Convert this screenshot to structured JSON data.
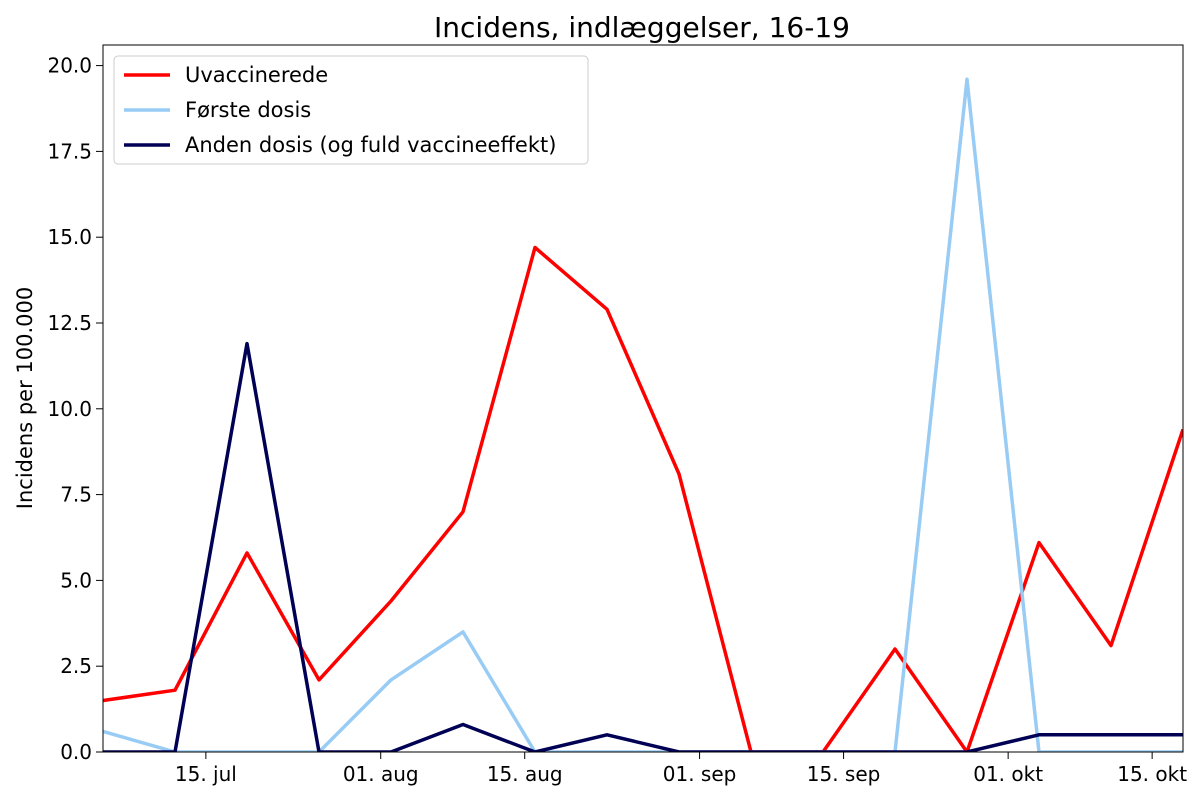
{
  "chart_data": {
    "type": "line",
    "title": "Incidens, indlæggelser, 16-19",
    "xlabel": "",
    "ylabel": "Incidens per 100.000",
    "x": [
      "2021-07-05",
      "2021-07-12",
      "2021-07-19",
      "2021-07-26",
      "2021-08-02",
      "2021-08-09",
      "2021-08-16",
      "2021-08-23",
      "2021-08-30",
      "2021-09-06",
      "2021-09-13",
      "2021-09-20",
      "2021-09-27",
      "2021-10-04",
      "2021-10-11",
      "2021-10-18"
    ],
    "xlim": [
      "2021-07-05",
      "2021-10-18"
    ],
    "xticks": [
      {
        "date": "2021-07-15",
        "label": "15. jul"
      },
      {
        "date": "2021-08-01",
        "label": "01. aug"
      },
      {
        "date": "2021-08-15",
        "label": "15. aug"
      },
      {
        "date": "2021-09-01",
        "label": "01. sep"
      },
      {
        "date": "2021-09-15",
        "label": "15. sep"
      },
      {
        "date": "2021-10-01",
        "label": "01. okt"
      },
      {
        "date": "2021-10-15",
        "label": "15. okt"
      }
    ],
    "ylim": [
      0,
      20.6
    ],
    "yticks": [
      {
        "value": 0,
        "label": "0.0"
      },
      {
        "value": 2.5,
        "label": "2.5"
      },
      {
        "value": 5,
        "label": "5.0"
      },
      {
        "value": 7.5,
        "label": "7.5"
      },
      {
        "value": 10,
        "label": "10.0"
      },
      {
        "value": 12.5,
        "label": "12.5"
      },
      {
        "value": 15,
        "label": "15.0"
      },
      {
        "value": 17.5,
        "label": "17.5"
      },
      {
        "value": 20,
        "label": "20.0"
      }
    ],
    "grid": false,
    "legend_position": "top-left",
    "series": [
      {
        "name": "Uvaccinerede",
        "color": "#ff0000",
        "values": [
          1.5,
          1.8,
          5.8,
          2.1,
          4.4,
          7.0,
          14.7,
          12.9,
          8.1,
          0,
          0,
          3.0,
          0,
          6.1,
          3.1,
          9.4
        ]
      },
      {
        "name": "Første dosis",
        "color": "#99ccf5",
        "values": [
          0.6,
          0,
          0,
          0,
          2.1,
          3.5,
          0,
          0,
          0,
          0,
          0,
          0,
          19.6,
          0,
          0,
          0
        ]
      },
      {
        "name": "Anden dosis (og fuld vaccineeffekt)",
        "color": "#000055",
        "values": [
          0,
          0,
          11.9,
          0,
          0,
          0.8,
          0,
          0.5,
          0,
          0,
          0,
          0,
          0,
          0.5,
          0.5,
          0.5
        ]
      }
    ]
  }
}
